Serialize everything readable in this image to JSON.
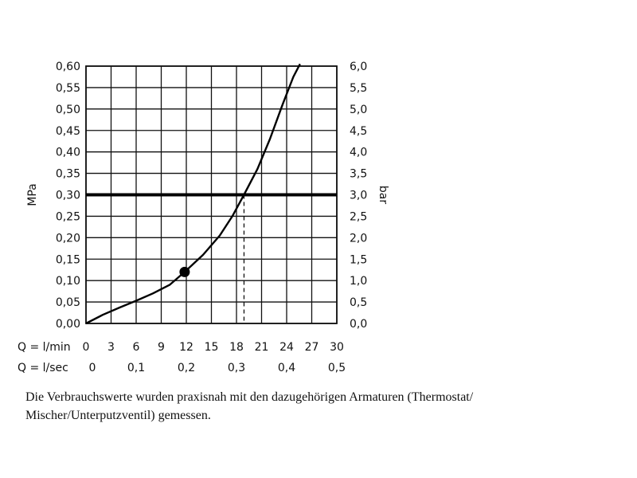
{
  "chart_data": {
    "type": "line",
    "left_axis_label": "MPa",
    "right_axis_label": "bar",
    "y_ticks": [
      "0,00",
      "0,05",
      "0,10",
      "0,15",
      "0,20",
      "0,25",
      "0,30",
      "0,35",
      "0,40",
      "0,45",
      "0,50",
      "0,55",
      "0,60"
    ],
    "y_right_ticks": [
      "0,0",
      "0,5",
      "1,0",
      "1,5",
      "2,0",
      "2,5",
      "3,0",
      "3,5",
      "4,0",
      "4,5",
      "5,0",
      "5,5",
      "6,0"
    ],
    "ylim": [
      0,
      0.6
    ],
    "xlim": [
      0,
      30
    ],
    "x_row1_label": "Q = l/min",
    "x_row1_ticks": [
      "0",
      "3",
      "6",
      "9",
      "12",
      "15",
      "18",
      "21",
      "24",
      "27",
      "30"
    ],
    "x_row2_label": "Q = l/sec",
    "x_row2_ticks": [
      "0",
      "0,1",
      "0,2",
      "0,3",
      "0,4",
      "0,5"
    ],
    "grid": true,
    "series": [
      {
        "x": [
          0,
          2,
          4,
          6,
          8,
          10,
          11.8,
          14,
          16,
          17.5,
          18.9,
          20.5,
          22,
          23.5,
          24.8,
          25.6
        ],
        "y": [
          0,
          0.02,
          0.037,
          0.053,
          0.07,
          0.09,
          0.12,
          0.16,
          0.205,
          0.25,
          0.3,
          0.36,
          0.43,
          0.51,
          0.575,
          0.605
        ]
      }
    ],
    "marker_point": {
      "x": 11.8,
      "y": 0.12
    },
    "reference_line": {
      "y": 0.3
    },
    "dashed_drop": {
      "x": 18.9,
      "y": 0.3
    }
  },
  "caption": {
    "line1": "Die Verbrauchswerte wurden praxisnah mit den dazugehörigen Armaturen (Thermostat/",
    "line2": "Mischer/Unterputzventil) gemessen."
  }
}
